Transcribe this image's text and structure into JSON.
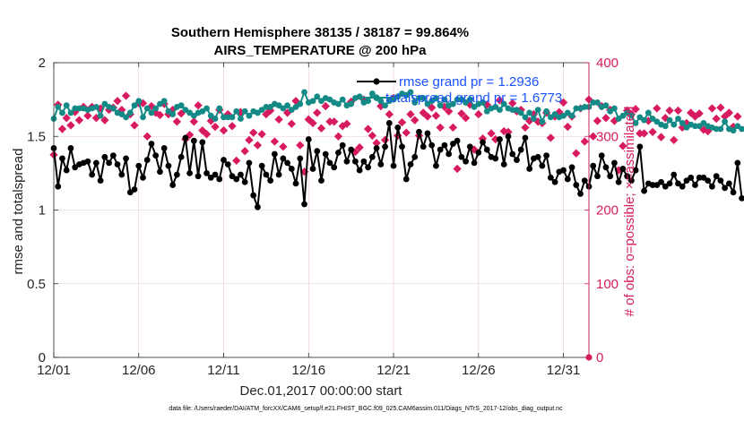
{
  "chart_data": {
    "type": "line",
    "title": "Southern Hemisphere 38135 / 38187 = 99.864%",
    "subtitle": "AIRS_TEMPERATURE @ 200 hPa",
    "xlabel": "Dec.01,2017 00:00:00 start",
    "ylabel_left": "rmse and totalspread",
    "ylabel_right": "# of obs: o=possible; ×=assimilated",
    "xlim": [
      0,
      31.5
    ],
    "ylim_left": [
      0,
      2
    ],
    "ylim_right": [
      0,
      400
    ],
    "x_tick_values": [
      0,
      5,
      10,
      15,
      20,
      25,
      30
    ],
    "x_tick_labels": [
      "12/01",
      "12/06",
      "12/11",
      "12/16",
      "12/21",
      "12/26",
      "12/31"
    ],
    "y_left_ticks": [
      "0",
      "0.5",
      "1",
      "1.5",
      "2"
    ],
    "y_right_ticks": [
      "0",
      "100",
      "200",
      "300",
      "400"
    ],
    "legend": [
      "rmse grand pr = 1.2936",
      "totalspread grand pr = 1.6773"
    ],
    "legend_position": "top-right",
    "footer": "data file: /Users/raeder/DAI/ATM_forcXX/CAM6_setup/f.e21.FHIST_BGC.f09_025.CAM6assim.011/Diags_NTrS_2017-12/obs_diag_output.nc",
    "colors": {
      "rmse": "#000000",
      "spread": "#138a86",
      "obs": "#d81b60",
      "grid": "#e8c8d6"
    },
    "x_step_days": 0.25,
    "series": [
      {
        "name": "rmse",
        "axis": "left",
        "values": [
          1.42,
          1.16,
          1.35,
          1.27,
          1.42,
          1.29,
          1.31,
          1.32,
          1.33,
          1.24,
          1.32,
          1.2,
          1.36,
          1.32,
          1.37,
          1.31,
          1.24,
          1.35,
          1.12,
          1.14,
          1.3,
          1.22,
          1.34,
          1.45,
          1.37,
          1.26,
          1.42,
          1.3,
          1.17,
          1.24,
          1.36,
          1.49,
          1.25,
          1.47,
          1.23,
          1.46,
          1.25,
          1.22,
          1.24,
          1.21,
          1.34,
          1.31,
          1.23,
          1.21,
          1.24,
          1.19,
          1.32,
          1.1,
          1.02,
          1.3,
          1.24,
          1.2,
          1.38,
          1.24,
          1.35,
          1.32,
          1.28,
          1.18,
          1.35,
          1.04,
          1.48,
          1.28,
          1.4,
          1.2,
          1.38,
          1.32,
          1.29,
          1.39,
          1.44,
          1.33,
          1.41,
          1.33,
          1.27,
          1.33,
          1.29,
          1.36,
          1.42,
          1.31,
          1.43,
          1.59,
          1.3,
          1.56,
          1.43,
          1.21,
          1.31,
          1.36,
          1.53,
          1.43,
          1.52,
          1.44,
          1.3,
          1.41,
          1.44,
          1.38,
          1.45,
          1.47,
          1.36,
          1.33,
          1.43,
          1.32,
          1.39,
          1.46,
          1.41,
          1.36,
          1.35,
          1.48,
          1.31,
          1.5,
          1.38,
          1.34,
          1.41,
          1.49,
          1.28,
          1.35,
          1.36,
          1.3,
          1.37,
          1.22,
          1.19,
          1.26,
          1.27,
          1.21,
          1.29,
          1.17,
          1.11,
          1.2,
          1.16,
          1.3,
          1.23,
          1.37,
          1.29,
          1.23,
          1.32,
          1.19,
          1.28,
          1.23,
          1.2,
          1.27,
          1.43,
          1.13,
          1.18,
          1.17,
          1.17,
          1.19,
          1.16,
          1.18,
          1.24,
          1.18,
          1.16,
          1.2,
          1.22,
          1.17,
          1.22,
          1.22,
          1.2,
          1.16,
          1.23,
          1.2,
          1.15,
          1.18,
          1.12,
          1.32,
          1.08
        ]
      },
      {
        "name": "totalspread",
        "axis": "left",
        "values": [
          1.62,
          1.7,
          1.66,
          1.71,
          1.66,
          1.69,
          1.69,
          1.69,
          1.68,
          1.69,
          1.7,
          1.64,
          1.72,
          1.7,
          1.69,
          1.66,
          1.65,
          1.63,
          1.66,
          1.71,
          1.74,
          1.63,
          1.69,
          1.66,
          1.69,
          1.72,
          1.74,
          1.67,
          1.65,
          1.7,
          1.71,
          1.68,
          1.66,
          1.64,
          1.66,
          1.67,
          1.69,
          1.64,
          1.62,
          1.69,
          1.63,
          1.63,
          1.63,
          1.67,
          1.62,
          1.67,
          1.64,
          1.67,
          1.66,
          1.68,
          1.7,
          1.7,
          1.72,
          1.71,
          1.69,
          1.71,
          1.68,
          1.7,
          1.72,
          1.8,
          1.73,
          1.74,
          1.77,
          1.74,
          1.76,
          1.75,
          1.73,
          1.72,
          1.75,
          1.71,
          1.72,
          1.76,
          1.77,
          1.73,
          1.74,
          1.79,
          1.76,
          1.74,
          1.71,
          1.74,
          1.75,
          1.77,
          1.79,
          1.78,
          1.8,
          1.73,
          1.76,
          1.76,
          1.72,
          1.74,
          1.76,
          1.71,
          1.75,
          1.71,
          1.72,
          1.75,
          1.75,
          1.73,
          1.75,
          1.7,
          1.72,
          1.73,
          1.67,
          1.69,
          1.7,
          1.68,
          1.72,
          1.69,
          1.68,
          1.68,
          1.66,
          1.63,
          1.66,
          1.62,
          1.68,
          1.6,
          1.67,
          1.63,
          1.65,
          1.63,
          1.64,
          1.66,
          1.64,
          1.69,
          1.69,
          1.7,
          1.7,
          1.73,
          1.73,
          1.7,
          1.71,
          1.67,
          1.69,
          1.62,
          1.64,
          1.66,
          1.64,
          1.59,
          1.63,
          1.61,
          1.66,
          1.62,
          1.6,
          1.58,
          1.57,
          1.61,
          1.58,
          1.62,
          1.59,
          1.56,
          1.58,
          1.57,
          1.57,
          1.59,
          1.57,
          1.56,
          1.55,
          1.55,
          1.6,
          1.55,
          1.54,
          1.57,
          1.55
        ]
      },
      {
        "name": "obs_possible",
        "axis": "right",
        "values": [
          275,
          343,
          310,
          325,
          315,
          333,
          322,
          340,
          328,
          340,
          325,
          338,
          322,
          336,
          339,
          348,
          336,
          355,
          330,
          315,
          345,
          345,
          300,
          341,
          332,
          329,
          344,
          330,
          336,
          320,
          331,
          296,
          302,
          320,
          342,
          308,
          303,
          321,
          313,
          336,
          308,
          330,
          314,
          267,
          333,
          280,
          295,
          305,
          288,
          303,
          330,
          335,
          293,
          323,
          286,
          332,
          317,
          348,
          288,
          252,
          323,
          318,
          332,
          311,
          341,
          320,
          320,
          300,
          314,
          317,
          347,
          279,
          285,
          350,
          310,
          301,
          291,
          341,
          295,
          330,
          352,
          301,
          319,
          305,
          330,
          322,
          301,
          332,
          327,
          339,
          328,
          312,
          340,
          334,
          312,
          256,
          331,
          325,
          343,
          282,
          330,
          297,
          343,
          304,
          296,
          349,
          307,
          306,
          345,
          334,
          336,
          312,
          321,
          330,
          320,
          318,
          332,
          298,
          327,
          333,
          346,
          313,
          327,
          277,
          338,
          293,
          350,
          300,
          321,
          341,
          325,
          336,
          321,
          254,
          287,
          335,
          330,
          337,
          304,
          304,
          321,
          306,
          338,
          299,
          325,
          335,
          295,
          335,
          312,
          318,
          332,
          327,
          331,
          309,
          307,
          338,
          324,
          339,
          327,
          332,
          313,
          327
        ]
      }
    ]
  }
}
